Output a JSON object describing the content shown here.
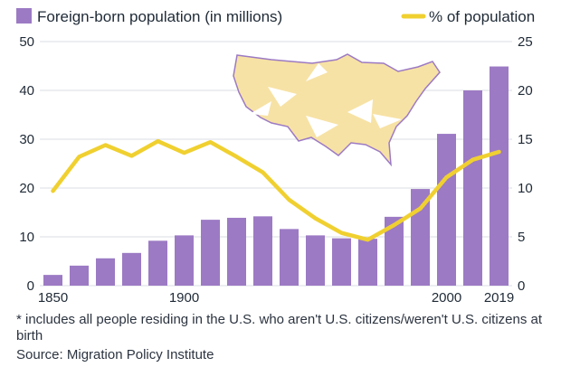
{
  "colors": {
    "bar": "#9c7ac4",
    "line": "#f0d030",
    "grid": "#d8dde3",
    "map_fill": "#f7e2a5",
    "map_stroke": "#9c7ac4"
  },
  "footnote": "* includes all people residing in the U.S. who aren't U.S. citizens/weren't U.S. citizens at birth",
  "source": "Source: Migration Policy Institute",
  "chart_data": {
    "type": "bar",
    "title": "",
    "x": [
      1850,
      1860,
      1870,
      1880,
      1890,
      1900,
      1910,
      1920,
      1930,
      1940,
      1950,
      1960,
      1970,
      1980,
      1990,
      2000,
      2010,
      2019
    ],
    "x_tick_labels": [
      "1850",
      "1900",
      "2000",
      "2019"
    ],
    "x_tick_values": [
      1850,
      1900,
      2000,
      2019
    ],
    "series": [
      {
        "name": "Foreign-born population (in millions)",
        "type": "bar",
        "axis": "left",
        "values": [
          2.2,
          4.1,
          5.6,
          6.7,
          9.2,
          10.3,
          13.5,
          13.9,
          14.2,
          11.6,
          10.3,
          9.7,
          9.6,
          14.1,
          19.8,
          31.1,
          40.0,
          44.9
        ]
      },
      {
        "name": "% of population",
        "type": "line",
        "axis": "right",
        "values": [
          9.7,
          13.2,
          14.4,
          13.3,
          14.8,
          13.6,
          14.7,
          13.2,
          11.6,
          8.8,
          6.9,
          5.4,
          4.7,
          6.2,
          7.9,
          11.1,
          12.9,
          13.7
        ]
      }
    ],
    "y_left": {
      "ylim": [
        0,
        50
      ],
      "ticks": [
        0,
        10,
        20,
        30,
        40,
        50
      ]
    },
    "y_right": {
      "ylim": [
        0,
        25
      ],
      "ticks": [
        0,
        5,
        10,
        15,
        20,
        25
      ]
    },
    "grid": true,
    "legend": "top"
  }
}
